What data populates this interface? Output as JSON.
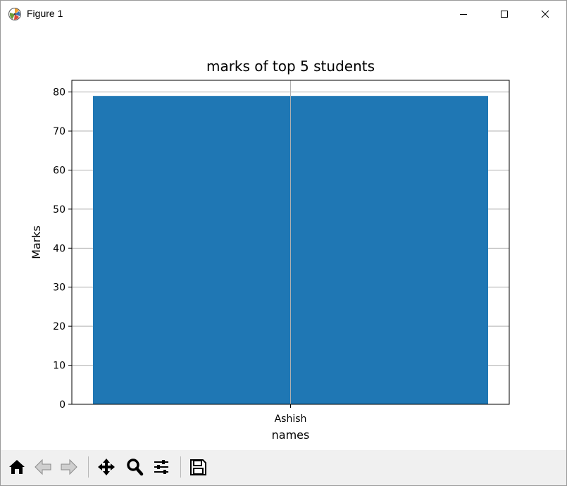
{
  "window": {
    "title": "Figure 1"
  },
  "colors": {
    "bar": "#1f77b4",
    "grid": "#b0b0b0",
    "axes": "#000000",
    "toolbar_bg": "#f0f0f0"
  },
  "toolbar": {
    "icons": [
      "home-icon",
      "back-arrow-icon",
      "forward-arrow-icon",
      "pan-icon",
      "zoom-icon",
      "configure-subplots-icon",
      "save-icon"
    ]
  },
  "chart_data": {
    "type": "bar",
    "title": "marks of top 5 students",
    "xlabel": "names",
    "ylabel": "Marks",
    "categories": [
      "Ashish"
    ],
    "values": [
      79
    ],
    "ylim": [
      0,
      83
    ],
    "yticks": [
      0,
      10,
      20,
      30,
      40,
      50,
      60,
      70,
      80
    ],
    "grid": true
  }
}
